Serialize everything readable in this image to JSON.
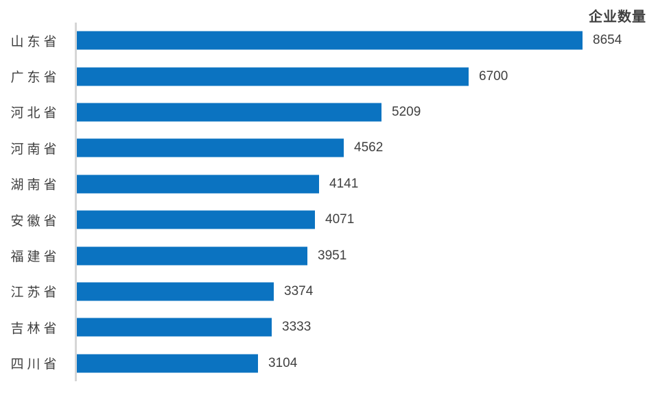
{
  "chart_data": {
    "type": "bar",
    "orientation": "horizontal",
    "title": "企业数量",
    "categories": [
      "山东省",
      "广东省",
      "河北省",
      "河南省",
      "湖南省",
      "安徽省",
      "福建省",
      "江苏省",
      "吉林省",
      "四川省"
    ],
    "values": [
      8654,
      6700,
      5209,
      4562,
      4141,
      4071,
      3951,
      3374,
      3333,
      3104
    ],
    "value_labels_shown": true,
    "xlim": [
      0,
      8654
    ],
    "grid": false,
    "legend": "none",
    "colors": {
      "bar": "#0b73c1",
      "axis_line": "#d6d6d6",
      "text": "#3f3f3f",
      "background": "#ffffff"
    }
  }
}
